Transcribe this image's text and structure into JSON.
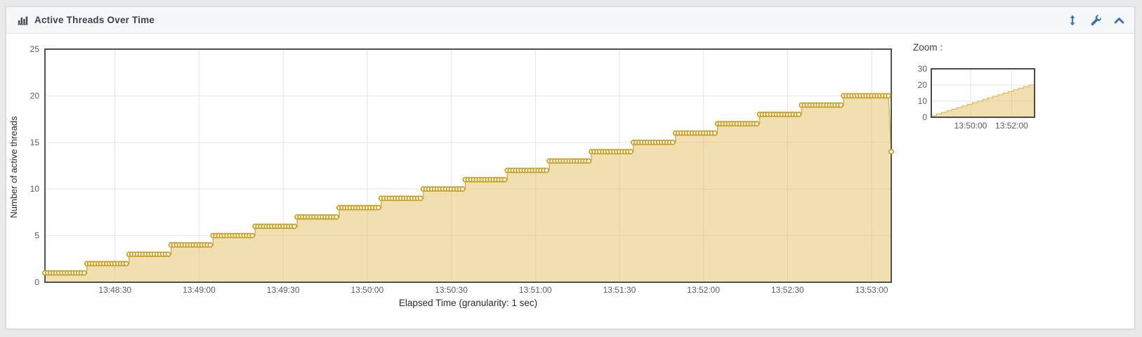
{
  "panel": {
    "title": "Active Threads Over Time",
    "title_icon": "bar-chart-icon",
    "toolbar": [
      {
        "name": "expand-vertical-icon"
      },
      {
        "name": "settings-wrench-icon"
      },
      {
        "name": "collapse-panel-icon"
      }
    ]
  },
  "colors": {
    "accent_blue": "#3a77ad",
    "line": "#d8b24a",
    "area_fill": "rgba(222,183,82,0.45)",
    "marker_stroke": "#c89d25",
    "marker_fill": "#fffbe8",
    "plot_border": "#525252",
    "gridline": "#e4e4e4",
    "tick_text": "#5c5c5c"
  },
  "chart_data": {
    "type": "area",
    "title": "Active Threads Over Time",
    "xlabel": "Elapsed Time (granularity: 1 sec)",
    "ylabel": "Number of active threads",
    "ylim": [
      0,
      25
    ],
    "y_ticks": [
      0,
      5,
      10,
      15,
      20,
      25
    ],
    "x_ticks": [
      "13:48:30",
      "13:49:00",
      "13:49:30",
      "13:50:00",
      "13:50:30",
      "13:51:00",
      "13:51:30",
      "13:52:00",
      "13:52:30",
      "13:53:00"
    ],
    "x_range": [
      "13:48:05",
      "13:53:07"
    ],
    "granularity_sec": 1,
    "step_interval_sec": 15,
    "grid": true,
    "legend": "none",
    "steps": [
      {
        "time": "13:48:05",
        "threads": 1
      },
      {
        "time": "13:48:20",
        "threads": 2
      },
      {
        "time": "13:48:35",
        "threads": 3
      },
      {
        "time": "13:48:50",
        "threads": 4
      },
      {
        "time": "13:49:05",
        "threads": 5
      },
      {
        "time": "13:49:20",
        "threads": 6
      },
      {
        "time": "13:49:35",
        "threads": 7
      },
      {
        "time": "13:49:50",
        "threads": 8
      },
      {
        "time": "13:50:05",
        "threads": 9
      },
      {
        "time": "13:50:20",
        "threads": 10
      },
      {
        "time": "13:50:35",
        "threads": 11
      },
      {
        "time": "13:50:50",
        "threads": 12
      },
      {
        "time": "13:51:05",
        "threads": 13
      },
      {
        "time": "13:51:20",
        "threads": 14
      },
      {
        "time": "13:51:35",
        "threads": 15
      },
      {
        "time": "13:51:50",
        "threads": 16
      },
      {
        "time": "13:52:05",
        "threads": 17
      },
      {
        "time": "13:52:20",
        "threads": 18
      },
      {
        "time": "13:52:35",
        "threads": 19
      },
      {
        "time": "13:52:50",
        "threads": 20
      }
    ],
    "plateau_end": "13:53:06",
    "final_point": {
      "time": "13:53:07",
      "threads": 14
    }
  },
  "zoom_panel": {
    "label": "Zoom :",
    "ylim": [
      0,
      30
    ],
    "y_ticks": [
      0,
      10,
      20,
      30
    ],
    "x_ticks": [
      "13:50:00",
      "13:52:00"
    ]
  }
}
